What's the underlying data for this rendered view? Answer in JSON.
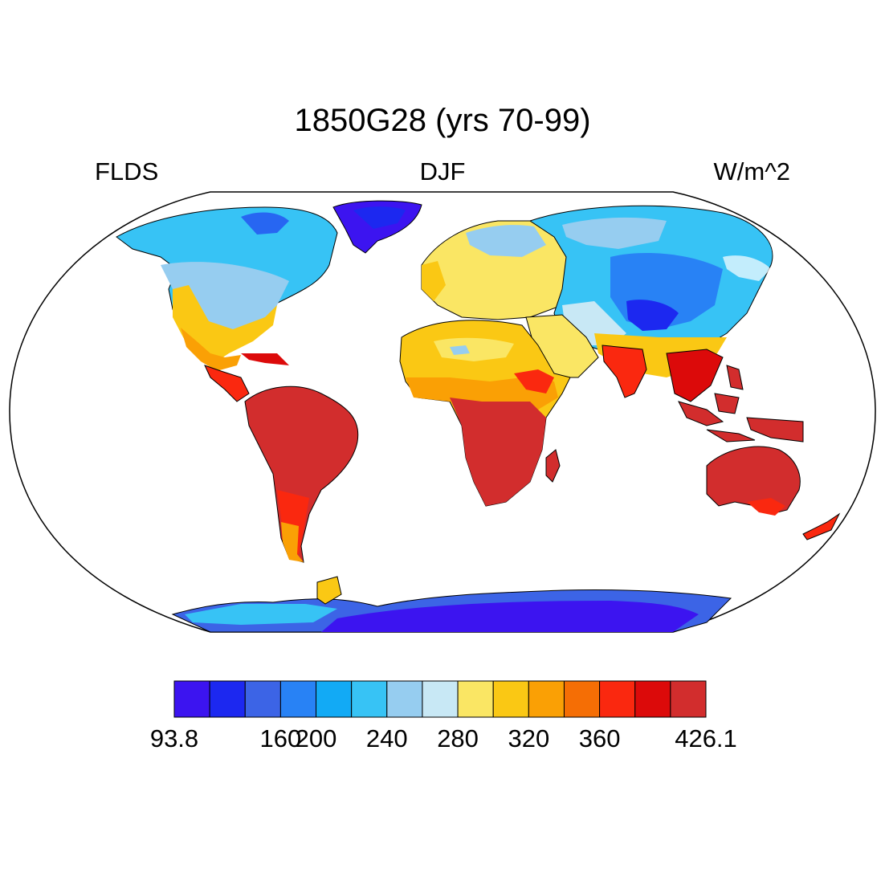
{
  "title": "1850G28 (yrs 70-99)",
  "left_label": "FLDS",
  "center_label": "DJF",
  "right_label": "W/m^2",
  "colorbar": {
    "colors": [
      "#3c14f0",
      "#1c28f0",
      "#3c64e6",
      "#2882f5",
      "#12aaf5",
      "#37c3f5",
      "#96cdf0",
      "#c8e8f5",
      "#fae664",
      "#fac814",
      "#faa005",
      "#f56e05",
      "#fa280f",
      "#dc0a0a",
      "#d22d2d"
    ],
    "labels": [
      "93.8",
      "",
      "160",
      "200",
      "240",
      "280",
      "320",
      "360",
      "426.1"
    ],
    "min": 93.8,
    "max": 426.1
  },
  "map": {
    "projection": "Robinson",
    "field": "FLDS",
    "season": "DJF",
    "units": "W/m^2",
    "missing_color": "#ffffff"
  }
}
